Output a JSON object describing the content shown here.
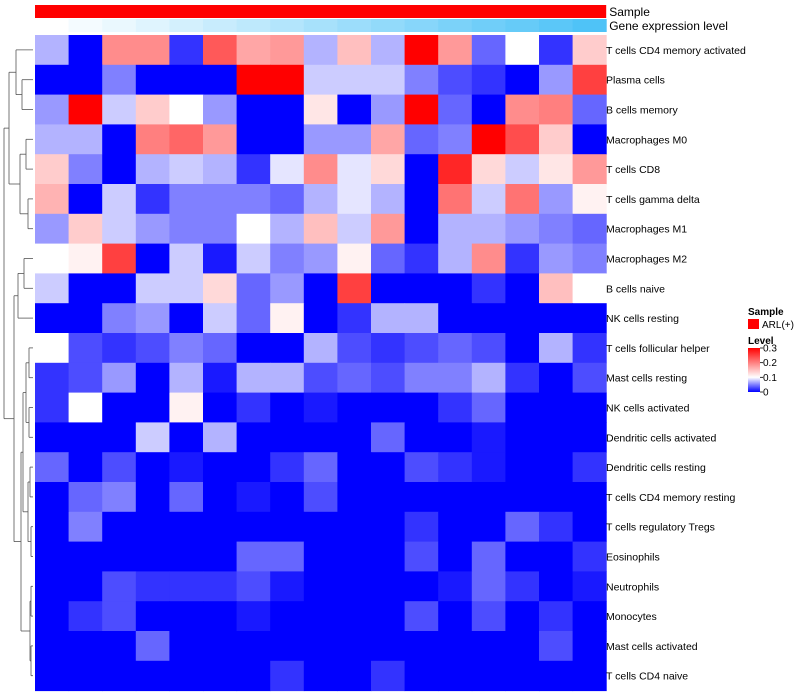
{
  "chart_data": {
    "type": "heatmap",
    "title": "",
    "annotation_tracks": [
      {
        "name": "Sample",
        "type": "categorical",
        "color": "#ff0000"
      },
      {
        "name": "Gene expression level",
        "type": "gradient",
        "from": "#ffffff",
        "to": "#4fc3f7"
      }
    ],
    "rows": [
      "T cells CD4 memory activated",
      "Plasma cells",
      "B cells memory",
      "Macrophages M0",
      "T cells CD8",
      "T cells gamma delta",
      "Macrophages M1",
      "Macrophages M2",
      "B cells naive",
      "NK cells resting",
      "T cells follicular helper",
      "Mast cells resting",
      "NK cells activated",
      "Dendritic cells activated",
      "Dendritic cells resting",
      "T cells CD4 memory resting",
      "T cells regulatory  Tregs",
      "Eosinophils",
      "Neutrophils",
      "Monocytes",
      "Mast cells activated",
      "T cells CD4 naive"
    ],
    "values": [
      [
        0.07,
        0.0,
        0.19,
        0.19,
        0.02,
        0.23,
        0.17,
        0.18,
        0.07,
        0.15,
        0.07,
        0.3,
        0.18,
        0.04,
        0.1,
        0.02,
        0.14
      ],
      [
        0.0,
        0.0,
        0.05,
        0.0,
        0.0,
        0.0,
        0.3,
        0.3,
        0.08,
        0.08,
        0.08,
        0.05,
        0.03,
        0.02,
        0.0,
        0.06,
        0.25
      ],
      [
        0.06,
        0.3,
        0.08,
        0.14,
        0.1,
        0.06,
        0.0,
        0.0,
        0.12,
        0.0,
        0.06,
        0.3,
        0.04,
        0.0,
        0.19,
        0.2,
        0.04
      ],
      [
        0.07,
        0.07,
        0.0,
        0.2,
        0.22,
        0.18,
        0.0,
        0.0,
        0.06,
        0.06,
        0.17,
        0.04,
        0.05,
        0.3,
        0.24,
        0.14,
        0.0
      ],
      [
        0.14,
        0.05,
        0.0,
        0.07,
        0.08,
        0.07,
        0.02,
        0.09,
        0.19,
        0.09,
        0.13,
        0.0,
        0.27,
        0.13,
        0.08,
        0.12,
        0.18
      ],
      [
        0.16,
        0.0,
        0.08,
        0.02,
        0.05,
        0.05,
        0.05,
        0.04,
        0.07,
        0.09,
        0.07,
        0.0,
        0.21,
        0.08,
        0.21,
        0.06,
        0.11
      ],
      [
        0.06,
        0.14,
        0.08,
        0.06,
        0.05,
        0.05,
        0.1,
        0.07,
        0.15,
        0.08,
        0.18,
        0.0,
        0.07,
        0.07,
        0.06,
        0.05,
        0.04
      ],
      [
        0.1,
        0.11,
        0.25,
        0.0,
        0.08,
        0.01,
        0.08,
        0.05,
        0.06,
        0.11,
        0.04,
        0.02,
        0.07,
        0.19,
        0.02,
        0.06,
        0.05
      ],
      [
        0.08,
        0.0,
        0.0,
        0.08,
        0.08,
        0.13,
        0.04,
        0.06,
        0.0,
        0.25,
        0.0,
        0.0,
        0.0,
        0.02,
        0.0,
        0.15,
        0.1
      ],
      [
        0.0,
        0.0,
        0.05,
        0.06,
        0.0,
        0.08,
        0.04,
        0.11,
        0.0,
        0.02,
        0.07,
        0.07,
        0.0,
        0.0,
        0.0,
        0.0,
        0.0
      ],
      [
        0.1,
        0.03,
        0.02,
        0.03,
        0.05,
        0.04,
        0.0,
        0.0,
        0.07,
        0.03,
        0.02,
        0.03,
        0.04,
        0.03,
        0.0,
        0.07,
        0.02
      ],
      [
        0.02,
        0.03,
        0.06,
        0.0,
        0.07,
        0.01,
        0.07,
        0.07,
        0.03,
        0.04,
        0.03,
        0.05,
        0.05,
        0.07,
        0.02,
        0.0,
        0.03
      ],
      [
        0.02,
        0.1,
        0.0,
        0.0,
        0.11,
        0.0,
        0.02,
        0.0,
        0.01,
        0.0,
        0.0,
        0.0,
        0.02,
        0.04,
        0.0,
        0.0,
        0.0
      ],
      [
        0.0,
        0.0,
        0.0,
        0.08,
        0.0,
        0.07,
        0.0,
        0.0,
        0.0,
        0.0,
        0.04,
        0.0,
        0.0,
        0.01,
        0.0,
        0.0,
        0.0
      ],
      [
        0.04,
        0.0,
        0.03,
        0.0,
        0.01,
        0.0,
        0.0,
        0.02,
        0.04,
        0.0,
        0.0,
        0.03,
        0.02,
        0.01,
        0.0,
        0.0,
        0.02
      ],
      [
        0.0,
        0.04,
        0.05,
        0.0,
        0.04,
        0.0,
        0.01,
        0.0,
        0.03,
        0.0,
        0.0,
        0.0,
        0.0,
        0.0,
        0.0,
        0.0,
        0.0
      ],
      [
        0.0,
        0.05,
        0.0,
        0.0,
        0.0,
        0.0,
        0.0,
        0.0,
        0.0,
        0.0,
        0.0,
        0.02,
        0.0,
        0.0,
        0.04,
        0.02,
        0.0
      ],
      [
        0.0,
        0.0,
        0.0,
        0.0,
        0.0,
        0.0,
        0.04,
        0.04,
        0.0,
        0.0,
        0.0,
        0.03,
        0.0,
        0.04,
        0.0,
        0.0,
        0.02
      ],
      [
        0.0,
        0.0,
        0.03,
        0.02,
        0.02,
        0.02,
        0.03,
        0.01,
        0.0,
        0.0,
        0.0,
        0.0,
        0.01,
        0.04,
        0.02,
        0.0,
        0.01
      ],
      [
        0.0,
        0.02,
        0.03,
        0.0,
        0.0,
        0.0,
        0.01,
        0.0,
        0.0,
        0.0,
        0.0,
        0.03,
        0.0,
        0.03,
        0.0,
        0.02,
        0.0
      ],
      [
        0.0,
        0.0,
        0.0,
        0.04,
        0.0,
        0.0,
        0.0,
        0.0,
        0.0,
        0.0,
        0.0,
        0.0,
        0.0,
        0.0,
        0.0,
        0.03,
        0.0
      ],
      [
        0.0,
        0.0,
        0.0,
        0.0,
        0.0,
        0.0,
        0.0,
        0.02,
        0.0,
        0.0,
        0.02,
        0.0,
        0.0,
        0.0,
        0.0,
        0.0,
        0.0
      ]
    ],
    "gradient_track_values": [
      0.0,
      0.06,
      0.12,
      0.18,
      0.25,
      0.31,
      0.37,
      0.43,
      0.5,
      0.56,
      0.62,
      0.68,
      0.75,
      0.81,
      0.87,
      0.93,
      1.0
    ],
    "color_scale": {
      "min": 0,
      "mid": 0.1,
      "max": 0.3,
      "low": "#0000ff",
      "mid_color": "#ffffff",
      "high": "#ff0000"
    },
    "legend": {
      "position": "right",
      "sample_title": "Sample",
      "sample_items": [
        {
          "label": "ARL(+)",
          "color": "#ff0000"
        }
      ],
      "level_title": "Level",
      "level_ticks": [
        "0.3",
        "0.2",
        "0.1",
        "0"
      ],
      "level_tick_values": [
        0.3,
        0.2,
        0.1,
        0
      ]
    },
    "row_dendrogram": "left"
  }
}
